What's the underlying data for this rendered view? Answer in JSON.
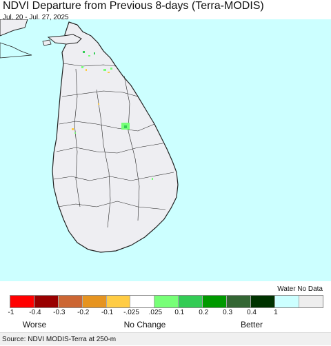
{
  "header": {
    "title": "NDVI Departure from Previous 8-days (Terra-MODIS)",
    "date_range": "Jul. 20 - Jul. 27, 2025"
  },
  "legend": {
    "water_label": "Water No Data",
    "colors": [
      "#ff0000",
      "#990000",
      "#cc6633",
      "#e69420",
      "#ffcc44",
      "#ffffff",
      "#77ff77",
      "#33cc55",
      "#009900",
      "#336633",
      "#003300",
      "#ccffff",
      "#eeeeee"
    ],
    "tick_labels": [
      "-1",
      "-0.4",
      "-0.3",
      "-0.2",
      "-0.1",
      "-.025",
      ".025",
      "0.1",
      "0.2",
      "0.3",
      "0.4",
      "1"
    ],
    "worse_label": "Worse",
    "no_change_label": "No Change",
    "better_label": "Better"
  },
  "map": {
    "water_color": "#ccffff",
    "land_color": "#eeeef2",
    "border_color": "#222222"
  },
  "footer": {
    "source": "Source: NDVI MODIS-Terra at 250-m"
  }
}
